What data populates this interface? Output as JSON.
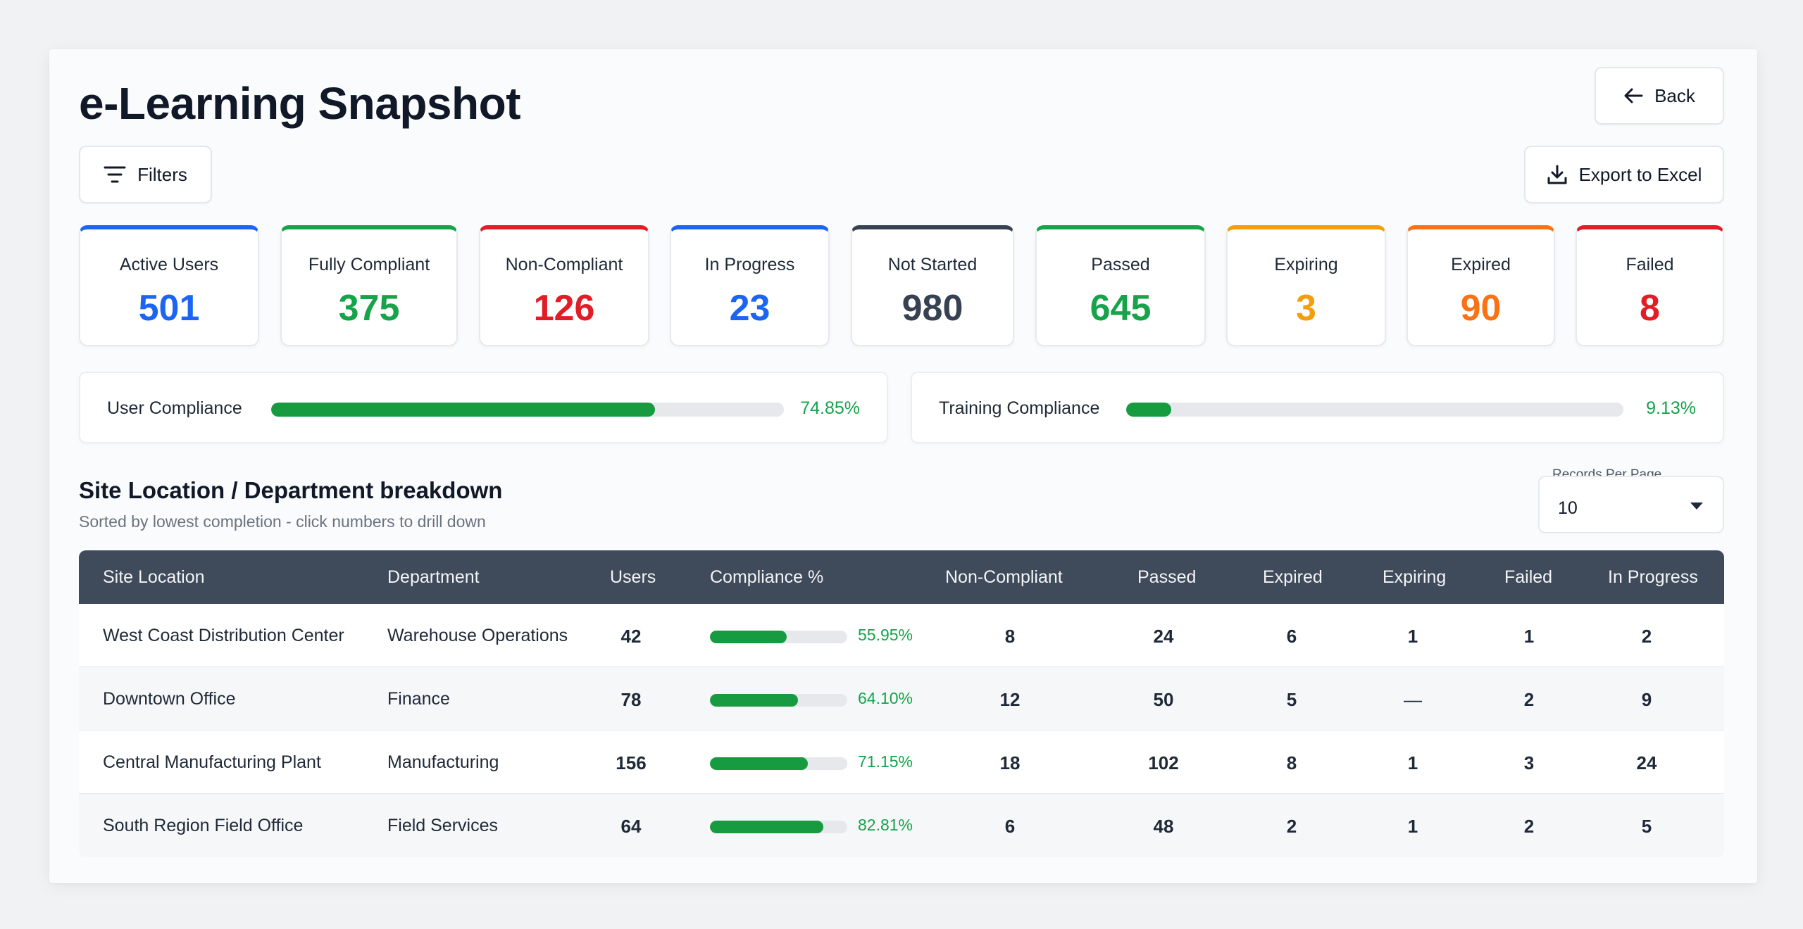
{
  "header": {
    "title": "e-Learning Snapshot",
    "back_label": "Back",
    "filters_label": "Filters",
    "export_label": "Export to Excel"
  },
  "stats": [
    {
      "label": "Active Users",
      "value": "501",
      "color": "#1c64f2"
    },
    {
      "label": "Fully Compliant",
      "value": "375",
      "color": "#16a34a"
    },
    {
      "label": "Non-Compliant",
      "value": "126",
      "color": "#e11d28"
    },
    {
      "label": "In Progress",
      "value": "23",
      "color": "#1c64f2"
    },
    {
      "label": "Not Started",
      "value": "980",
      "color": "#374151"
    },
    {
      "label": "Passed",
      "value": "645",
      "color": "#16a34a"
    },
    {
      "label": "Expiring",
      "value": "3",
      "color": "#f59e0b"
    },
    {
      "label": "Expired",
      "value": "90",
      "color": "#f97316"
    },
    {
      "label": "Failed",
      "value": "8",
      "color": "#e11d28"
    }
  ],
  "compliance": {
    "user": {
      "label": "User Compliance",
      "pct_text": "74.85%",
      "value": 74.85
    },
    "training": {
      "label": "Training Compliance",
      "pct_text": "9.13%",
      "value": 9.13
    }
  },
  "section": {
    "title": "Site Location / Department breakdown",
    "subtitle": "Sorted by lowest completion - click numbers to drill down",
    "records_label": "Records Per Page",
    "records_value": "10"
  },
  "table": {
    "headers": {
      "site": "Site Location",
      "dept": "Department",
      "users": "Users",
      "compliance": "Compliance %",
      "noncompliant": "Non-Compliant",
      "passed": "Passed",
      "expired": "Expired",
      "expiring": "Expiring",
      "failed": "Failed",
      "inprogress": "In Progress"
    },
    "rows": [
      {
        "site": "West Coast Distribution Center",
        "dept": "Warehouse Operations",
        "users": "42",
        "compliance": 55.95,
        "compliance_text": "55.95%",
        "noncompliant": "8",
        "passed": "24",
        "expired": "6",
        "expiring": "1",
        "failed": "1",
        "inprogress": "2"
      },
      {
        "site": "Downtown Office",
        "dept": "Finance",
        "users": "78",
        "compliance": 64.1,
        "compliance_text": "64.10%",
        "noncompliant": "12",
        "passed": "50",
        "expired": "5",
        "expiring": "—",
        "failed": "2",
        "inprogress": "9"
      },
      {
        "site": "Central Manufacturing Plant",
        "dept": "Manufacturing",
        "users": "156",
        "compliance": 71.15,
        "compliance_text": "71.15%",
        "noncompliant": "18",
        "passed": "102",
        "expired": "8",
        "expiring": "1",
        "failed": "3",
        "inprogress": "24"
      },
      {
        "site": "South Region Field Office",
        "dept": "Field Services",
        "users": "64",
        "compliance": 82.81,
        "compliance_text": "82.81%",
        "noncompliant": "6",
        "passed": "48",
        "expired": "2",
        "expiring": "1",
        "failed": "2",
        "inprogress": "5"
      }
    ]
  }
}
